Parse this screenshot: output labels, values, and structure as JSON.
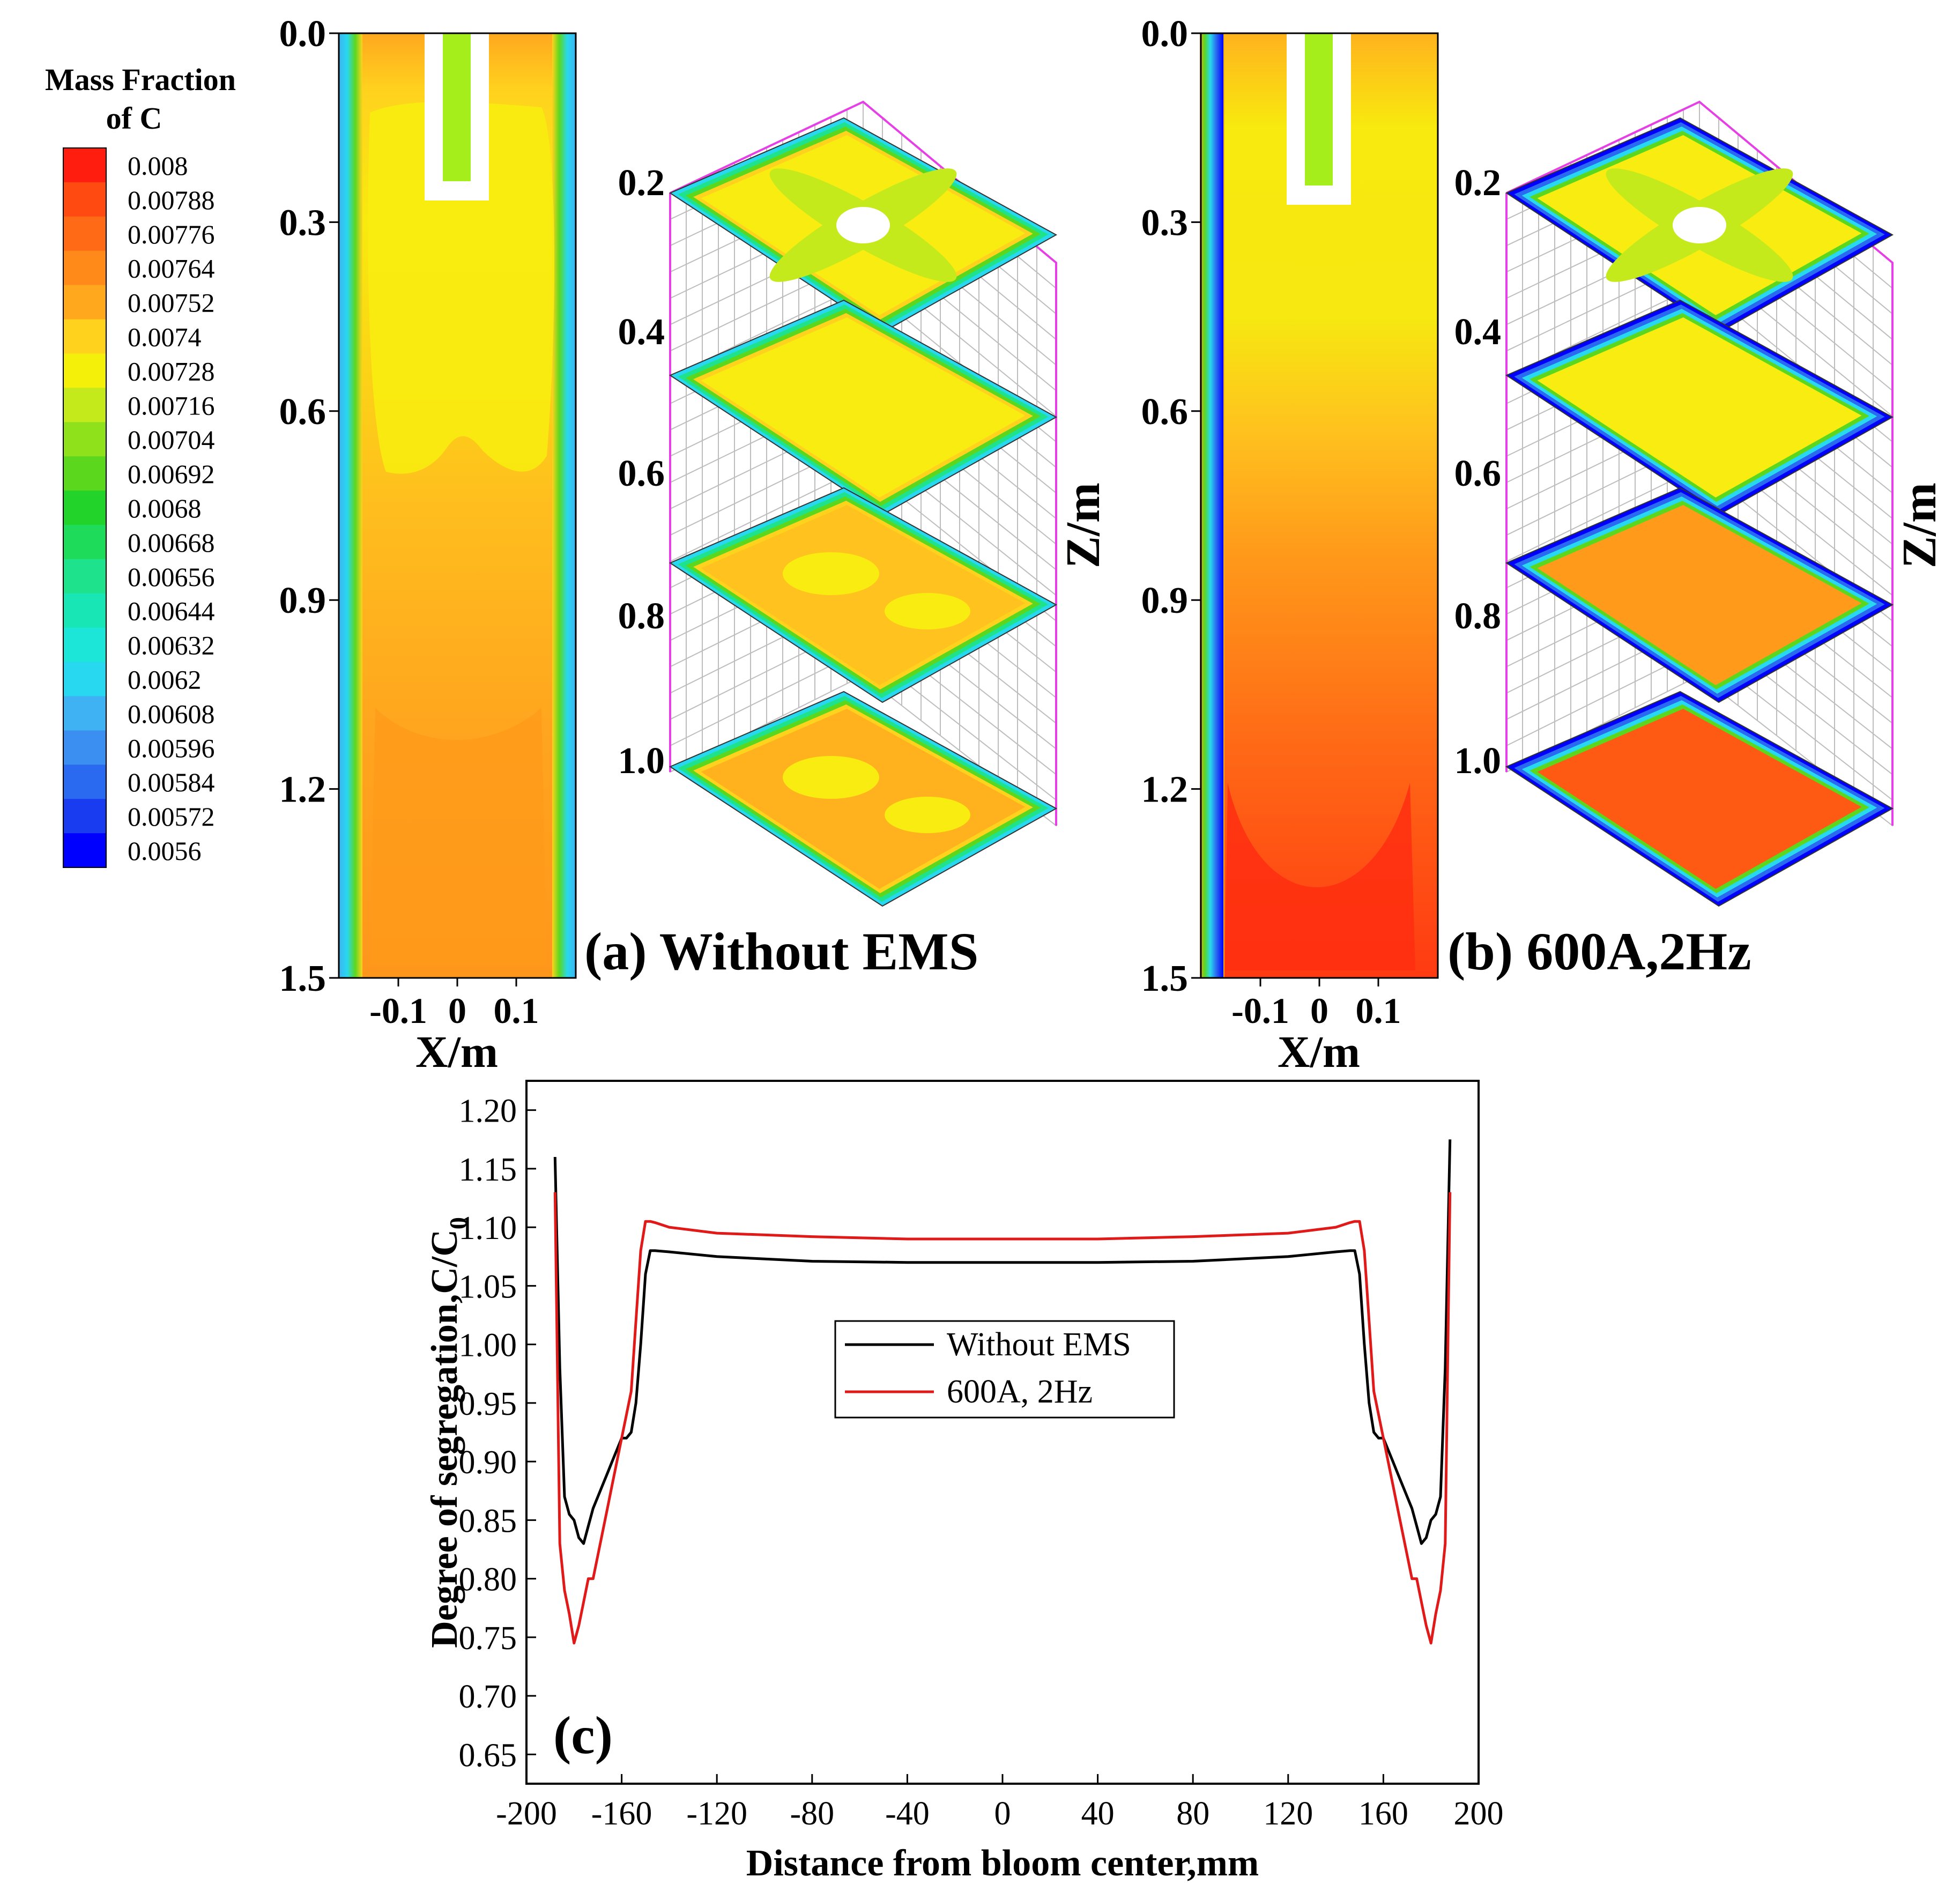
{
  "colors": {
    "scale": [
      "#0000ff",
      "#1a3cf0",
      "#2a6af0",
      "#3a8ff0",
      "#3eb2f2",
      "#27d8f0",
      "#1be6d8",
      "#18e6b4",
      "#1ee38c",
      "#1edc5a",
      "#22d42a",
      "#5bd81e",
      "#8fe11c",
      "#c4ea1c",
      "#f4f00a",
      "#ffd21e",
      "#ffa81e",
      "#ff8a1a",
      "#ff6a16",
      "#ff4a12",
      "#ff1d10"
    ],
    "frame3d": "#e63fe6",
    "grid3d": "#bdbdbd",
    "panel_label": "#e01919",
    "series_a": "#000000",
    "series_b": "#e01919"
  },
  "legend": {
    "title_line1": "Mass Fraction",
    "title_line2": "of C",
    "levels": [
      "0.008",
      "0.00788",
      "0.00776",
      "0.00764",
      "0.00752",
      "0.0074",
      "0.00728",
      "0.00716",
      "0.00704",
      "0.00692",
      "0.0068",
      "0.00668",
      "0.00656",
      "0.00644",
      "0.00632",
      "0.0062",
      "0.00608",
      "0.00596",
      "0.00584",
      "0.00572",
      "0.0056"
    ]
  },
  "panel_a": {
    "label": "(a) Without EMS",
    "z_ticks": [
      "0.0",
      "0.3",
      "0.6",
      "0.9",
      "1.2",
      "1.5"
    ],
    "x_ticks": [
      "-0.1",
      "0",
      "0.1"
    ],
    "x_axis_title": "X/m",
    "iso_z_ticks": [
      "0.2",
      "0.4",
      "0.6",
      "0.8",
      "1.0"
    ],
    "iso_axis_title": "Z/m"
  },
  "panel_b": {
    "label": "(b) 600A,2Hz",
    "z_ticks": [
      "0.0",
      "0.3",
      "0.6",
      "0.9",
      "1.2",
      "1.5"
    ],
    "x_ticks": [
      "-0.1",
      "0",
      "0.1"
    ],
    "x_axis_title": "X/m",
    "iso_z_ticks": [
      "0.2",
      "0.4",
      "0.6",
      "0.8",
      "1.0"
    ],
    "iso_axis_title": "Z/m"
  },
  "panel_c": {
    "label": "(c)"
  },
  "chart_data": {
    "type": "line",
    "title": "",
    "xlabel": "Distance from bloom center,mm",
    "ylabel": "Degree of segregation,C/C",
    "ylabel_subscript": "0",
    "xlim": [
      -200,
      200
    ],
    "ylim": [
      0.625,
      1.225
    ],
    "x_ticks": [
      -200,
      -160,
      -120,
      -80,
      -40,
      0,
      40,
      80,
      120,
      160,
      200
    ],
    "x_tick_labels": [
      "-200",
      "-160",
      "-120",
      "-80",
      "-40",
      "0",
      "40",
      "80",
      "120",
      "160",
      "200"
    ],
    "y_ticks": [
      0.65,
      0.7,
      0.75,
      0.8,
      0.85,
      0.9,
      0.95,
      1.0,
      1.05,
      1.1,
      1.15,
      1.2
    ],
    "y_tick_labels": [
      "0.65",
      "0.70",
      "0.75",
      "0.80",
      "0.85",
      "0.90",
      "0.95",
      "1.00",
      "1.05",
      "1.10",
      "1.15",
      "1.20"
    ],
    "legend_position": "center",
    "series": [
      {
        "name": "Without EMS",
        "x": [
          -188,
          -186,
          -184,
          -182,
          -180,
          -178,
          -176,
          -174,
          -172,
          -170,
          -168,
          -166,
          -164,
          -162,
          -160,
          -158,
          -156,
          -154,
          -152,
          -150,
          -148,
          -146,
          -140,
          -120,
          -80,
          -40,
          0,
          40,
          80,
          120,
          140,
          146,
          148,
          150,
          152,
          154,
          156,
          158,
          160,
          162,
          164,
          166,
          168,
          170,
          172,
          174,
          176,
          178,
          180,
          182,
          184,
          186,
          188
        ],
        "y": [
          1.16,
          0.98,
          0.87,
          0.855,
          0.85,
          0.835,
          0.83,
          0.845,
          0.86,
          0.87,
          0.88,
          0.89,
          0.9,
          0.91,
          0.92,
          0.92,
          0.925,
          0.95,
          1.0,
          1.06,
          1.08,
          1.08,
          1.079,
          1.075,
          1.071,
          1.07,
          1.07,
          1.07,
          1.071,
          1.075,
          1.079,
          1.08,
          1.08,
          1.06,
          1.0,
          0.95,
          0.925,
          0.92,
          0.92,
          0.91,
          0.9,
          0.89,
          0.88,
          0.87,
          0.86,
          0.845,
          0.83,
          0.835,
          0.85,
          0.855,
          0.87,
          0.98,
          1.175
        ]
      },
      {
        "name": "600A, 2Hz",
        "x": [
          -188,
          -186,
          -184,
          -182,
          -180,
          -178,
          -176,
          -174,
          -172,
          -170,
          -168,
          -166,
          -164,
          -162,
          -160,
          -158,
          -156,
          -154,
          -152,
          -150,
          -148,
          -146,
          -140,
          -120,
          -80,
          -40,
          0,
          40,
          80,
          120,
          140,
          146,
          148,
          150,
          152,
          154,
          156,
          158,
          160,
          162,
          164,
          166,
          168,
          170,
          172,
          174,
          176,
          178,
          180,
          182,
          184,
          186,
          188
        ],
        "y": [
          1.13,
          0.83,
          0.79,
          0.77,
          0.745,
          0.76,
          0.78,
          0.8,
          0.8,
          0.82,
          0.84,
          0.86,
          0.88,
          0.9,
          0.92,
          0.94,
          0.96,
          1.02,
          1.08,
          1.105,
          1.105,
          1.104,
          1.1,
          1.095,
          1.092,
          1.09,
          1.09,
          1.09,
          1.092,
          1.095,
          1.1,
          1.104,
          1.105,
          1.105,
          1.08,
          1.02,
          0.96,
          0.94,
          0.92,
          0.9,
          0.88,
          0.86,
          0.84,
          0.82,
          0.8,
          0.8,
          0.78,
          0.76,
          0.745,
          0.77,
          0.79,
          0.83,
          1.13
        ]
      }
    ]
  }
}
